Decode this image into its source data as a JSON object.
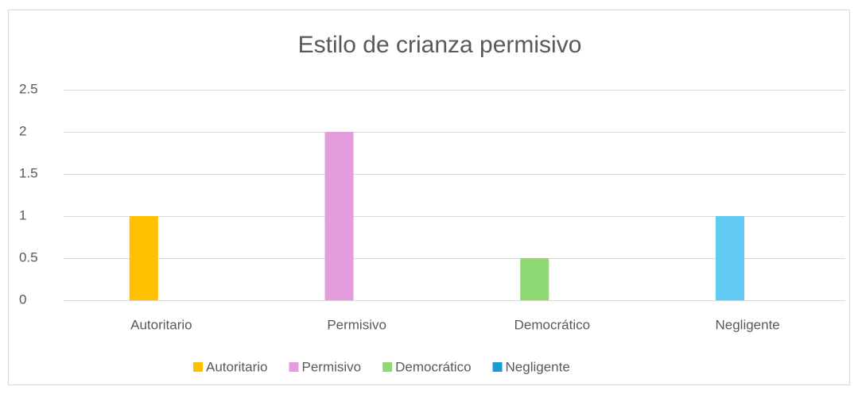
{
  "chart_data": {
    "type": "bar",
    "title": "Estilo de crianza permisivo",
    "categories": [
      "Autoritario",
      "Permisivo",
      "Democrático",
      "Negligente"
    ],
    "values": [
      1,
      2,
      0.5,
      1
    ],
    "colors": [
      "#ffc000",
      "#e59edd",
      "#8ed973",
      "#61cbf3"
    ],
    "legend": [
      "Autoritario",
      "Permisivo",
      "Democrático",
      "Negligente"
    ],
    "legend_colors": [
      "#ffc000",
      "#e59edd",
      "#8ed973",
      "#1a9bd7"
    ],
    "legend_position": "bottom",
    "ylim": [
      0,
      2.5
    ],
    "yticks": [
      0,
      0.5,
      1,
      1.5,
      2,
      2.5
    ],
    "grid": true
  }
}
